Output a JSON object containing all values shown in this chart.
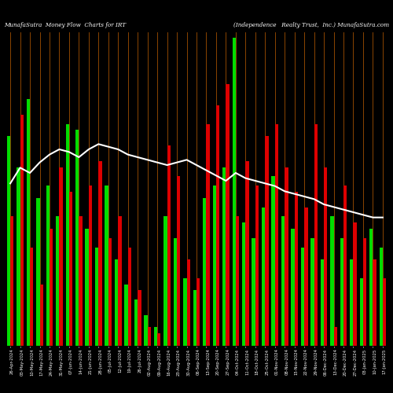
{
  "title_left": "MunafaSutra  Money Flow  Charts for IRT",
  "title_right": "(Independence   Realty Trust,  Inc.) MunafaSutra.com",
  "background_color": "#000000",
  "bar_color_green": "#00dd00",
  "bar_color_red": "#dd0000",
  "grid_color": "#8B4500",
  "line_color": "#ffffff",
  "bar_pairs": [
    {
      "green": 68,
      "red": 42
    },
    {
      "green": 58,
      "red": 75
    },
    {
      "green": 80,
      "red": 32
    },
    {
      "green": 48,
      "red": 20
    },
    {
      "green": 52,
      "red": 38
    },
    {
      "green": 42,
      "red": 58
    },
    {
      "green": 72,
      "red": 50
    },
    {
      "green": 70,
      "red": 42
    },
    {
      "green": 38,
      "red": 52
    },
    {
      "green": 32,
      "red": 60
    },
    {
      "green": 52,
      "red": 35
    },
    {
      "green": 28,
      "red": 42
    },
    {
      "green": 20,
      "red": 32
    },
    {
      "green": 15,
      "red": 18
    },
    {
      "green": 10,
      "red": 6
    },
    {
      "green": 6,
      "red": 4
    },
    {
      "green": 42,
      "red": 65
    },
    {
      "green": 35,
      "red": 55
    },
    {
      "green": 22,
      "red": 28
    },
    {
      "green": 18,
      "red": 22
    },
    {
      "green": 48,
      "red": 72
    },
    {
      "green": 52,
      "red": 78
    },
    {
      "green": 58,
      "red": 85
    },
    {
      "green": 100,
      "red": 42
    },
    {
      "green": 40,
      "red": 60
    },
    {
      "green": 35,
      "red": 52
    },
    {
      "green": 45,
      "red": 68
    },
    {
      "green": 55,
      "red": 72
    },
    {
      "green": 42,
      "red": 58
    },
    {
      "green": 38,
      "red": 50
    },
    {
      "green": 32,
      "red": 45
    },
    {
      "green": 35,
      "red": 72
    },
    {
      "green": 28,
      "red": 58
    },
    {
      "green": 42,
      "red": 6
    },
    {
      "green": 35,
      "red": 52
    },
    {
      "green": 28,
      "red": 40
    },
    {
      "green": 22,
      "red": 35
    },
    {
      "green": 38,
      "red": 28
    },
    {
      "green": 32,
      "red": 22
    }
  ],
  "line_values": [
    62,
    68,
    66,
    70,
    73,
    75,
    74,
    72,
    75,
    77,
    76,
    75,
    73,
    72,
    71,
    70,
    69,
    70,
    71,
    69,
    67,
    65,
    63,
    66,
    64,
    63,
    62,
    61,
    59,
    58,
    57,
    56,
    54,
    53,
    52,
    51,
    50,
    49,
    49
  ],
  "labels": [
    "26-Apr-2024",
    "03-May-2024",
    "10-May-2024",
    "17-May-2024",
    "24-May-2024",
    "31-May-2024",
    "07-Jun-2024",
    "14-Jun-2024",
    "21-Jun-2024",
    "28-Jun-2024",
    "05-Jul-2024",
    "12-Jul-2024",
    "19-Jul-2024",
    "26-Jul-2024",
    "02-Aug-2024",
    "09-Aug-2024",
    "16-Aug-2024",
    "23-Aug-2024",
    "30-Aug-2024",
    "06-Sep-2024",
    "13-Sep-2024",
    "20-Sep-2024",
    "27-Sep-2024",
    "04-Oct-2024",
    "11-Oct-2024",
    "18-Oct-2024",
    "25-Oct-2024",
    "01-Nov-2024",
    "08-Nov-2024",
    "15-Nov-2024",
    "22-Nov-2024",
    "29-Nov-2024",
    "06-Dec-2024",
    "13-Dec-2024",
    "20-Dec-2024",
    "27-Dec-2024",
    "03-Jan-2025",
    "10-Jan-2025",
    "17-Jan-2025"
  ],
  "figsize": [
    5.0,
    5.0
  ],
  "dpi": 100
}
